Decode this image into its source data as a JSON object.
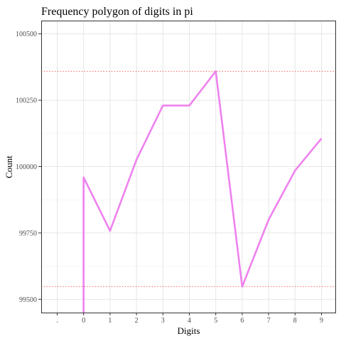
{
  "chart_data": {
    "type": "line",
    "title": "Frequency polygon of digits in pi",
    "xlabel": "Digits",
    "ylabel": "Count",
    "categories": [
      ".",
      "0",
      "1",
      "2",
      "3",
      "4",
      "5",
      "6",
      "7",
      "8",
      "9"
    ],
    "series": [
      {
        "color": "#ee82ee",
        "points": [
          {
            "x": "0",
            "y": 99450
          },
          {
            "x": "0",
            "y": 99959
          },
          {
            "x": "1",
            "y": 99758
          },
          {
            "x": "2",
            "y": 100026
          },
          {
            "x": "3",
            "y": 100230
          },
          {
            "x": "4",
            "y": 100230
          },
          {
            "x": "5",
            "y": 100359
          },
          {
            "x": "6",
            "y": 99548
          },
          {
            "x": "7",
            "y": 99800
          },
          {
            "x": "8",
            "y": 99985
          },
          {
            "x": "9",
            "y": 100106
          }
        ]
      }
    ],
    "reference_lines": [
      {
        "y": 100359,
        "color": "#ff4040",
        "style": "dotted"
      },
      {
        "y": 99548,
        "color": "#ff4040",
        "style": "dotted"
      }
    ],
    "yticks": [
      99500,
      99750,
      100000,
      100250,
      100500
    ],
    "ylim": [
      99450,
      100550
    ],
    "grid": true,
    "legend": "none"
  }
}
